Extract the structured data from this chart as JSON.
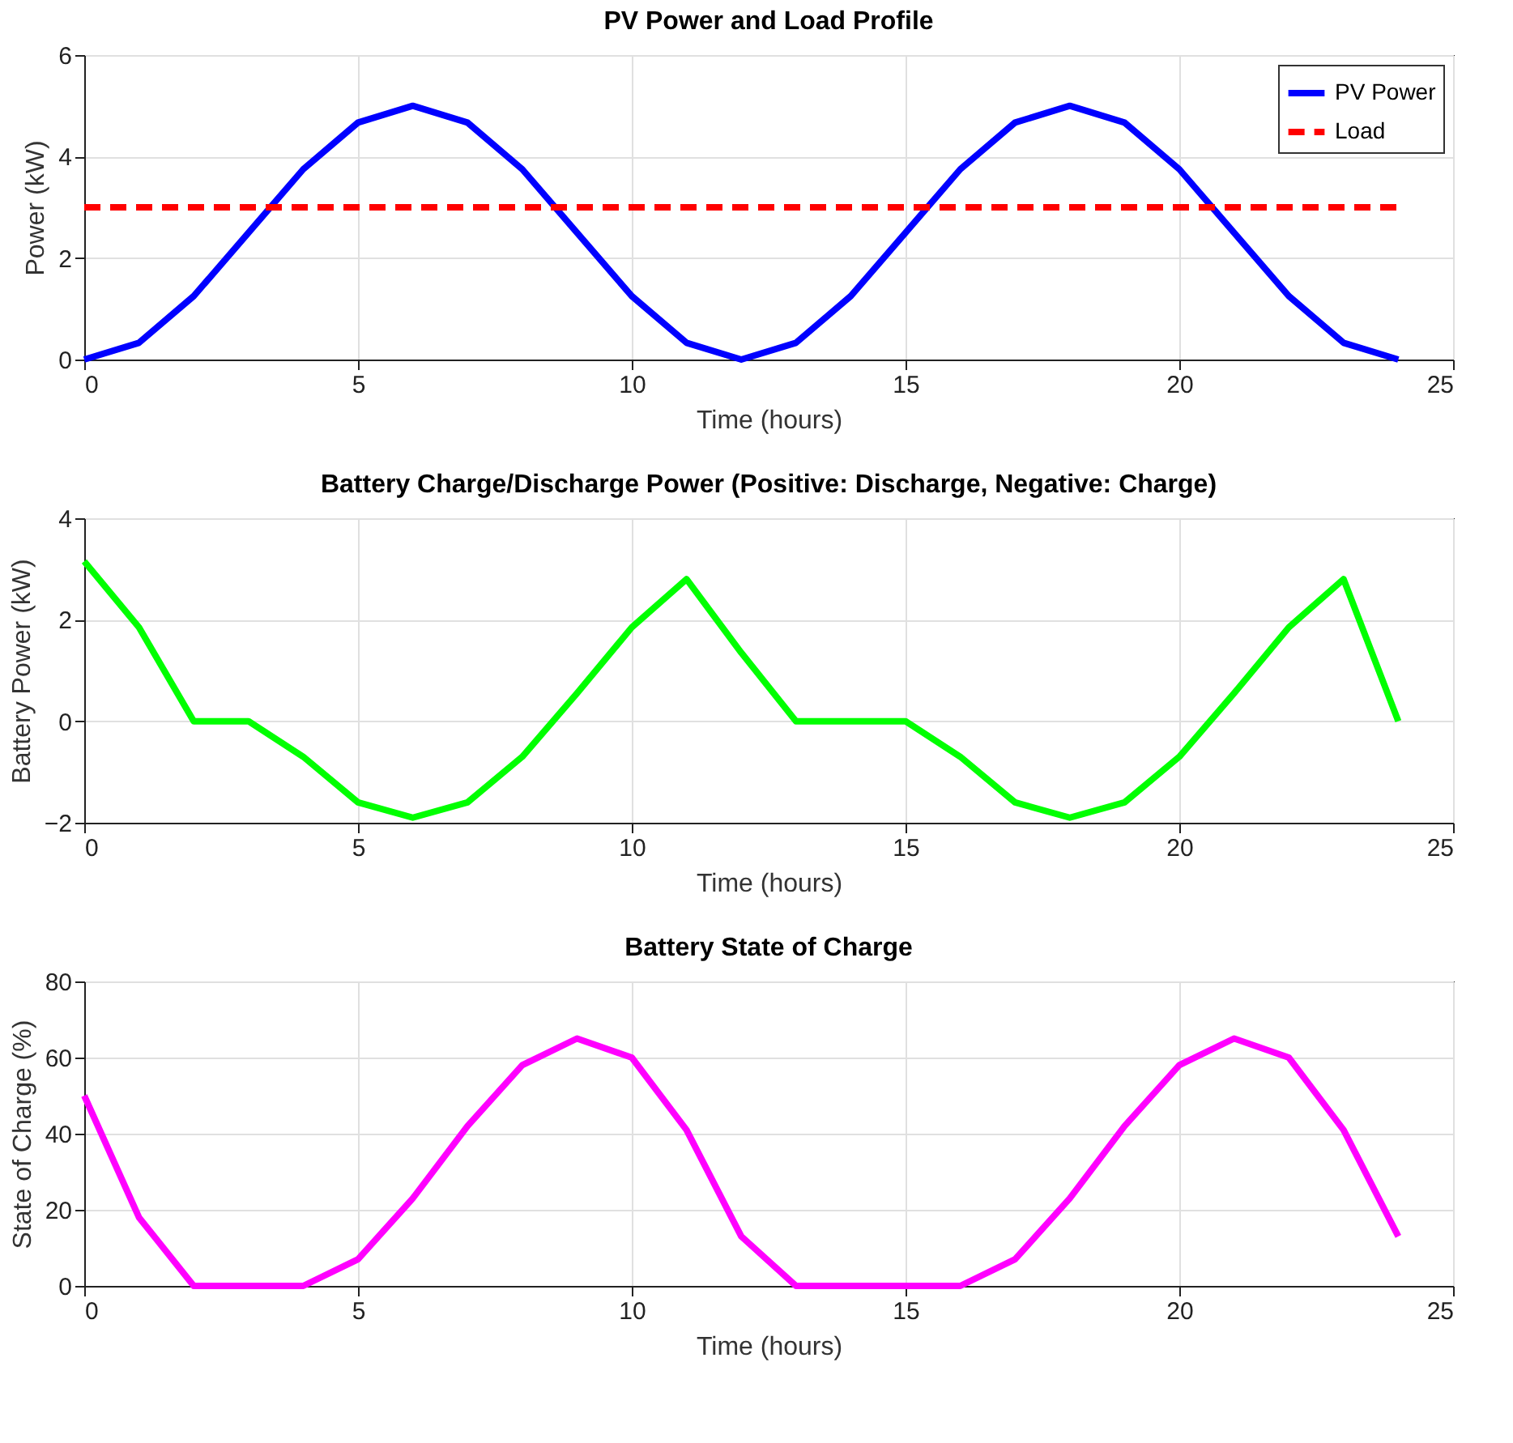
{
  "chart_data": [
    {
      "type": "line",
      "title": "PV Power and Load Profile",
      "xlabel": "Time (hours)",
      "ylabel": "Power (kW)",
      "x": [
        0,
        1,
        2,
        3,
        4,
        5,
        6,
        7,
        8,
        9,
        10,
        11,
        12,
        13,
        14,
        15,
        16,
        17,
        18,
        19,
        20,
        21,
        22,
        23,
        24
      ],
      "xlim": [
        0,
        25
      ],
      "xticks": [
        0,
        5,
        10,
        15,
        20,
        25
      ],
      "ylim": [
        0,
        6
      ],
      "yticks": [
        0,
        2,
        4,
        6
      ],
      "grid": true,
      "legend": "top right",
      "series": [
        {
          "name": "PV Power",
          "color": "#0000ff",
          "line_style": "solid",
          "values": [
            0,
            0.33,
            1.25,
            2.5,
            3.75,
            4.67,
            5,
            4.67,
            3.75,
            2.5,
            1.25,
            0.33,
            0,
            0.33,
            1.25,
            2.5,
            3.75,
            4.67,
            5,
            4.67,
            3.75,
            2.5,
            1.25,
            0.33,
            0
          ]
        },
        {
          "name": "Load",
          "color": "#ff0000",
          "line_style": "dashed",
          "values": [
            3,
            3,
            3,
            3,
            3,
            3,
            3,
            3,
            3,
            3,
            3,
            3,
            3,
            3,
            3,
            3,
            3,
            3,
            3,
            3,
            3,
            3,
            3,
            3,
            3
          ]
        }
      ]
    },
    {
      "type": "line",
      "title": "Battery Charge/Discharge Power (Positive: Discharge, Negative: Charge)",
      "xlabel": "Time (hours)",
      "ylabel": "Battery Power (kW)",
      "x": [
        0,
        1,
        2,
        3,
        4,
        5,
        6,
        7,
        8,
        9,
        10,
        11,
        12,
        13,
        14,
        15,
        16,
        17,
        18,
        19,
        20,
        21,
        22,
        23,
        24
      ],
      "xlim": [
        0,
        25
      ],
      "xticks": [
        0,
        5,
        10,
        15,
        20,
        25
      ],
      "ylim": [
        -2,
        4
      ],
      "yticks": [
        -2,
        0,
        2,
        4
      ],
      "grid": true,
      "series": [
        {
          "color": "#00ff00",
          "line_style": "solid",
          "values": [
            3.15,
            1.85,
            0,
            0,
            -0.7,
            -1.6,
            -1.9,
            -1.6,
            -0.7,
            0.55,
            1.85,
            2.8,
            1.35,
            0,
            0,
            0,
            -0.7,
            -1.6,
            -1.9,
            -1.6,
            -0.7,
            0.55,
            1.85,
            2.8,
            0
          ]
        }
      ]
    },
    {
      "type": "line",
      "title": "Battery State of Charge",
      "xlabel": "Time (hours)",
      "ylabel": "State of Charge (%)",
      "x": [
        0,
        1,
        2,
        3,
        4,
        5,
        6,
        7,
        8,
        9,
        10,
        11,
        12,
        13,
        14,
        15,
        16,
        17,
        18,
        19,
        20,
        21,
        22,
        23,
        24
      ],
      "xlim": [
        0,
        25
      ],
      "xticks": [
        0,
        5,
        10,
        15,
        20,
        25
      ],
      "ylim": [
        0,
        80
      ],
      "yticks": [
        0,
        20,
        40,
        60,
        80
      ],
      "grid": true,
      "series": [
        {
          "color": "#ff00ff",
          "line_style": "solid",
          "values": [
            50,
            18,
            0,
            0,
            0,
            7,
            23,
            42,
            58,
            65,
            60,
            41,
            13,
            0,
            0,
            0,
            0,
            7,
            23,
            42,
            58,
            65,
            60,
            41,
            13
          ]
        }
      ]
    }
  ]
}
